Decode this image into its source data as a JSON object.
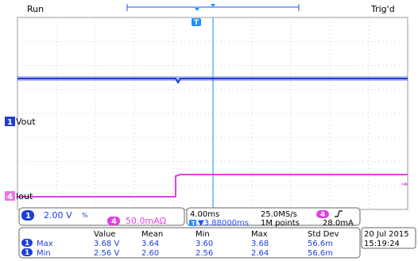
{
  "header": {
    "run_status": "Run",
    "trigger_status": "Trig'd"
  },
  "trigger": {
    "marker_label": "T"
  },
  "channels": {
    "ch1": {
      "number": "1",
      "name": "Vout",
      "scale": "2.00 V",
      "coupling_symbol": "%",
      "color": "#1f3ed6"
    },
    "ch4": {
      "number": "4",
      "name": "Iout",
      "scale": "50.0mAΩ",
      "coupling_symbol": "%",
      "color": "#e040e0"
    }
  },
  "timebase": {
    "time_per_div": "4.00ms",
    "sample_rate": "25.0MS/s",
    "trigger_position": "▼3.88000ms",
    "record_length": "1M points",
    "trigger_channel": "4",
    "trigger_level": "28.0mA"
  },
  "measurements": {
    "headers": [
      "Value",
      "Mean",
      "Min",
      "Max",
      "Std Dev"
    ],
    "rows": [
      {
        "channel": "1",
        "name": "Max",
        "values": [
          "3.68 V",
          "3.64",
          "3.60",
          "3.68",
          "56.6m"
        ]
      },
      {
        "channel": "1",
        "name": "Min",
        "values": [
          "2.56 V",
          "2.60",
          "2.56",
          "2.64",
          "56.6m"
        ]
      }
    ]
  },
  "datetime": {
    "date": "20 Jul  2015",
    "time": "15:19:24"
  },
  "colors": {
    "ch1": "#1f3ed6",
    "ch4": "#e040e0",
    "grid": "#b8b8b8",
    "accent_blue": "#1e90ff"
  }
}
